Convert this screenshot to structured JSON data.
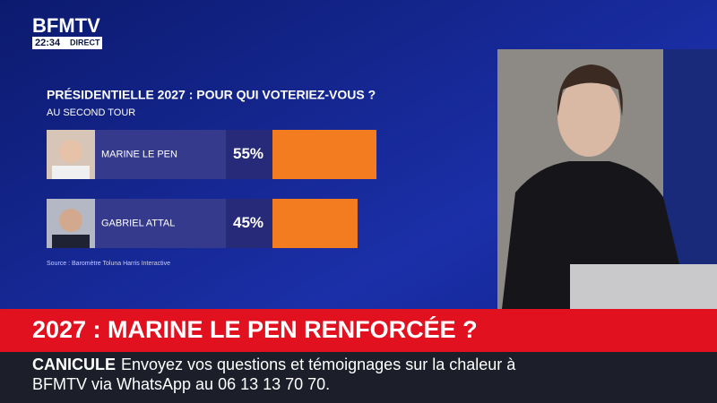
{
  "channel": {
    "logo": "BFMTV",
    "time": "22:34",
    "live": "DIRECT"
  },
  "chart_data": {
    "type": "bar",
    "orientation": "horizontal",
    "title": "PRÉSIDENTIELLE 2027 : POUR QUI VOTERIEZ-VOUS ?",
    "subtitle": "AU SECOND TOUR",
    "categories": [
      "MARINE LE PEN",
      "GABRIEL ATTAL"
    ],
    "values": [
      55,
      45
    ],
    "value_labels": [
      "55%",
      "45%"
    ],
    "color": "#f47c20",
    "source": "Source : Baromètre Toluna Harris Interactive"
  },
  "headline": "2027 : MARINE LE PEN RENFORCÉE ?",
  "ticker": {
    "label": "CANICULE",
    "text": "Envoyez vos questions et témoignages sur la chaleur à BFMTV via WhatsApp au 06 13 13 70 70."
  }
}
